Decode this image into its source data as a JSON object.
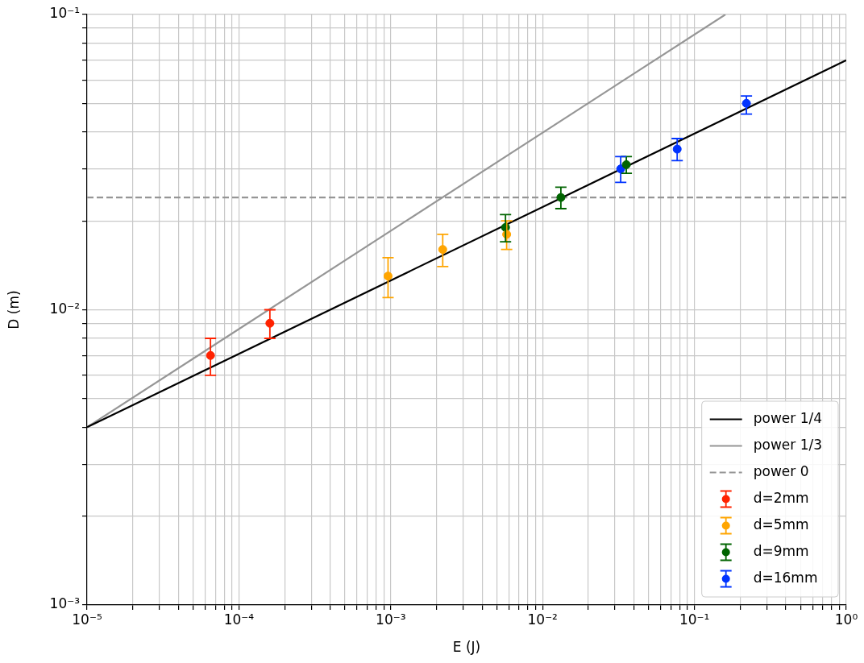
{
  "chart_data": {
    "type": "scatter",
    "xlabel": "E (J)",
    "ylabel": "D (m)",
    "log": "xy",
    "grid": true,
    "legend": "bottom right",
    "xlim": [
      1e-05,
      1
    ],
    "ylim": [
      0.001,
      0.1
    ],
    "xticks": [
      {
        "value": 1e-05,
        "label": "10⁻⁵"
      },
      {
        "value": 2e-05,
        "label": null
      },
      {
        "value": 3e-05,
        "label": null
      },
      {
        "value": 4e-05,
        "label": null
      },
      {
        "value": 5e-05,
        "label": null
      },
      {
        "value": 6e-05,
        "label": null
      },
      {
        "value": 7e-05,
        "label": null
      },
      {
        "value": 8e-05,
        "label": null
      },
      {
        "value": 9e-05,
        "label": null
      },
      {
        "value": 0.0001,
        "label": "10⁻⁴"
      },
      {
        "value": 0.0002,
        "label": null
      },
      {
        "value": 0.0003,
        "label": null
      },
      {
        "value": 0.0004,
        "label": null
      },
      {
        "value": 0.0005,
        "label": null
      },
      {
        "value": 0.0006,
        "label": null
      },
      {
        "value": 0.0007,
        "label": null
      },
      {
        "value": 0.0008,
        "label": null
      },
      {
        "value": 0.0009,
        "label": null
      },
      {
        "value": 0.001,
        "label": "10⁻³"
      },
      {
        "value": 0.002,
        "label": null
      },
      {
        "value": 0.003,
        "label": null
      },
      {
        "value": 0.004,
        "label": null
      },
      {
        "value": 0.005,
        "label": null
      },
      {
        "value": 0.006,
        "label": null
      },
      {
        "value": 0.007,
        "label": null
      },
      {
        "value": 0.008,
        "label": null
      },
      {
        "value": 0.009,
        "label": null
      },
      {
        "value": 0.01,
        "label": "10⁻²"
      },
      {
        "value": 0.02,
        "label": null
      },
      {
        "value": 0.03,
        "label": null
      },
      {
        "value": 0.04,
        "label": null
      },
      {
        "value": 0.05,
        "label": null
      },
      {
        "value": 0.06,
        "label": null
      },
      {
        "value": 0.07,
        "label": null
      },
      {
        "value": 0.08,
        "label": null
      },
      {
        "value": 0.09,
        "label": null
      },
      {
        "value": 0.1,
        "label": "10⁻¹"
      },
      {
        "value": 0.2,
        "label": null
      },
      {
        "value": 0.3,
        "label": null
      },
      {
        "value": 0.4,
        "label": null
      },
      {
        "value": 0.5,
        "label": null
      },
      {
        "value": 0.6,
        "label": null
      },
      {
        "value": 0.7,
        "label": null
      },
      {
        "value": 0.8,
        "label": null
      },
      {
        "value": 0.9,
        "label": null
      },
      {
        "value": 1,
        "label": "10⁰"
      }
    ],
    "yticks": [
      {
        "value": 0.001,
        "label": "10⁻³"
      },
      {
        "value": 0.002,
        "label": null
      },
      {
        "value": 0.003,
        "label": null
      },
      {
        "value": 0.004,
        "label": null
      },
      {
        "value": 0.005,
        "label": null
      },
      {
        "value": 0.006,
        "label": null
      },
      {
        "value": 0.007,
        "label": null
      },
      {
        "value": 0.008,
        "label": null
      },
      {
        "value": 0.009,
        "label": null
      },
      {
        "value": 0.01,
        "label": "10⁻²"
      },
      {
        "value": 0.02,
        "label": null
      },
      {
        "value": 0.03,
        "label": null
      },
      {
        "value": 0.04,
        "label": null
      },
      {
        "value": 0.05,
        "label": null
      },
      {
        "value": 0.06,
        "label": null
      },
      {
        "value": 0.07,
        "label": null
      },
      {
        "value": 0.08,
        "label": null
      },
      {
        "value": 0.09,
        "label": null
      },
      {
        "value": 0.1,
        "label": "10⁻¹"
      }
    ],
    "series": [
      {
        "name": "power 1/4",
        "type": "line",
        "marker": "none",
        "color": "#000000",
        "line_style": "solid",
        "x": [
          1e-05,
          1
        ],
        "values": [
          0.004,
          0.07
        ]
      },
      {
        "name": "power 1/3",
        "type": "line",
        "marker": "none",
        "color": "#969696",
        "line_style": "solid",
        "x": [
          1e-05,
          0.16
        ],
        "values": [
          0.004,
          0.1
        ]
      },
      {
        "name": "power 0",
        "type": "line",
        "marker": "none",
        "color": "#969696",
        "line_style": "dashed",
        "x": [
          1e-05,
          1
        ],
        "values": [
          0.024,
          0.024
        ]
      },
      {
        "name": "d=2mm",
        "marker": "circle",
        "color": "#ff2200",
        "x": [
          6.5e-05,
          0.00016
        ],
        "values": [
          0.007,
          0.009
        ],
        "errors": [
          [
            0.006,
            0.008
          ],
          [
            0.008,
            0.01
          ]
        ]
      },
      {
        "name": "d=5mm",
        "marker": "circle",
        "color": "#ffa500",
        "x": [
          0.00096,
          0.0022,
          0.0058
        ],
        "values": [
          0.013,
          0.016,
          0.018
        ],
        "errors": [
          [
            0.011,
            0.015
          ],
          [
            0.014,
            0.018
          ],
          [
            0.016,
            0.02
          ]
        ]
      },
      {
        "name": "d=9mm",
        "marker": "circle",
        "color": "#006400",
        "x": [
          0.0057,
          0.0132,
          0.0356
        ],
        "values": [
          0.019,
          0.024,
          0.031
        ],
        "errors": [
          [
            0.017,
            0.021
          ],
          [
            0.022,
            0.026
          ],
          [
            0.029,
            0.033
          ]
        ]
      },
      {
        "name": "d=16mm",
        "marker": "circle",
        "color": "#0033ff",
        "x": [
          0.0327,
          0.077,
          0.22
        ],
        "values": [
          0.03,
          0.035,
          0.05
        ],
        "errors": [
          [
            0.027,
            0.033
          ],
          [
            0.032,
            0.038
          ],
          [
            0.046,
            0.053
          ]
        ]
      }
    ]
  }
}
